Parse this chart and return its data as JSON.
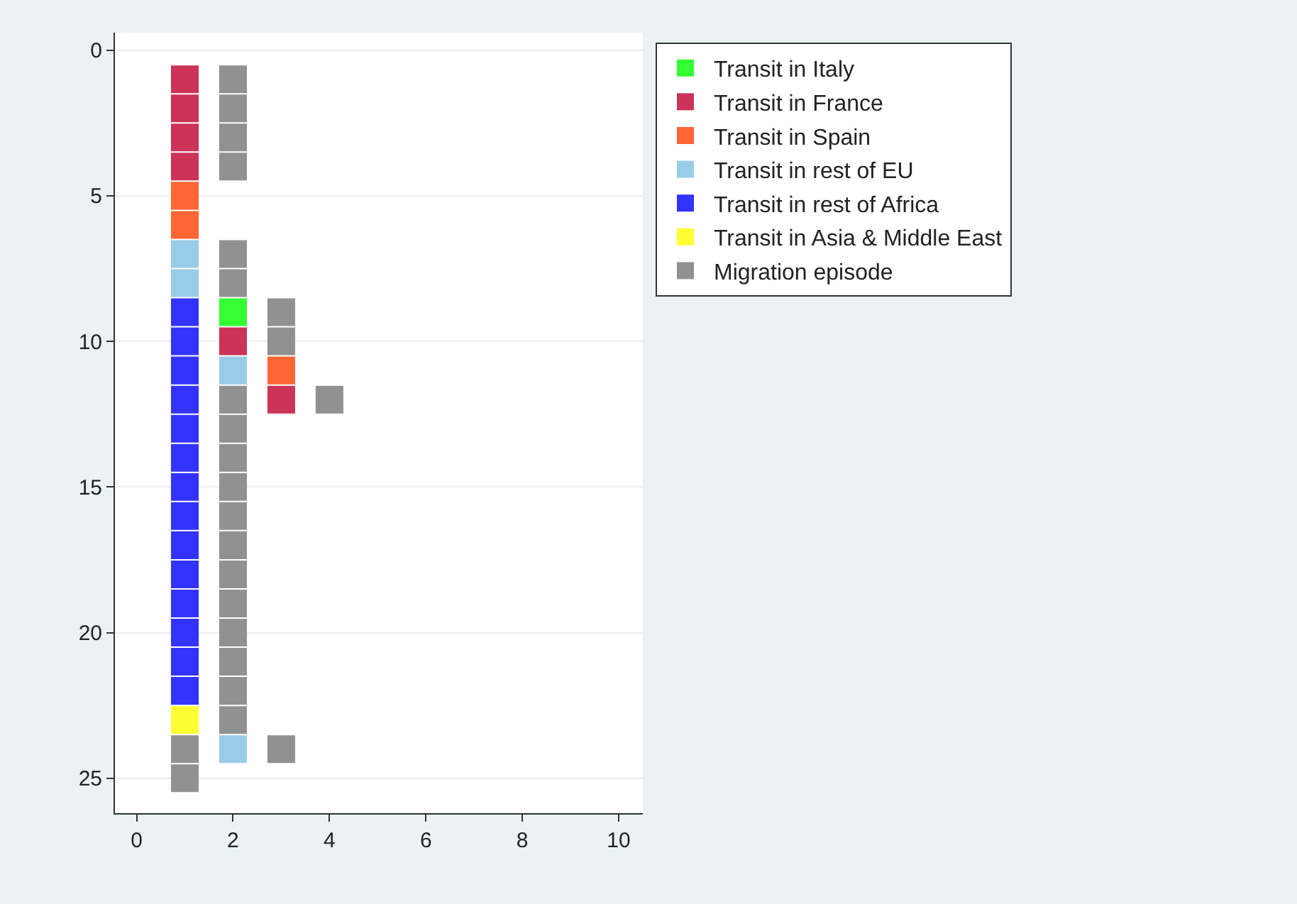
{
  "chart_data": {
    "type": "scatter",
    "marker": "square",
    "grid": "y",
    "legend": "top right",
    "xlim": [
      -0.45,
      10.5
    ],
    "xticks": [
      0,
      2,
      4,
      6,
      8,
      10
    ],
    "ylim": [
      26.2,
      -0.6
    ],
    "yticks": [
      0,
      5,
      10,
      15,
      20,
      25
    ],
    "series": [
      {
        "name": "Transit in Italy",
        "color": "#33ff33",
        "x": [
          2
        ],
        "values": [
          9
        ]
      },
      {
        "name": "Transit in France",
        "color": "#cc3358",
        "x": [
          1,
          1,
          1,
          1,
          2,
          3
        ],
        "values": [
          1,
          2,
          3,
          4,
          10,
          12
        ]
      },
      {
        "name": "Transit in Spain",
        "color": "#ff6633",
        "x": [
          1,
          1,
          3
        ],
        "values": [
          5,
          6,
          11
        ]
      },
      {
        "name": "Transit in rest of EU",
        "color": "#99cce8",
        "x": [
          1,
          1,
          2,
          2
        ],
        "values": [
          7,
          8,
          11,
          24
        ]
      },
      {
        "name": "Transit in rest of Africa",
        "color": "#3333ff",
        "x": [
          1,
          1,
          1,
          1,
          1,
          1,
          1,
          1,
          1,
          1,
          1,
          1,
          1,
          1
        ],
        "values": [
          9,
          10,
          11,
          12,
          13,
          14,
          15,
          16,
          17,
          18,
          19,
          20,
          21,
          22
        ]
      },
      {
        "name": "Transit in Asia & Middle East",
        "color": "#ffff33",
        "x": [
          1
        ],
        "values": [
          23
        ]
      },
      {
        "name": "Migration episode",
        "color": "#919191",
        "x": [
          2,
          2,
          2,
          2,
          2,
          2,
          3,
          3,
          2,
          4,
          2,
          2,
          2,
          2,
          2,
          2,
          2,
          2,
          2,
          2,
          2,
          1,
          3,
          1
        ],
        "values": [
          1,
          2,
          3,
          4,
          7,
          8,
          9,
          10,
          12,
          12,
          13,
          14,
          15,
          16,
          17,
          18,
          19,
          20,
          21,
          22,
          23,
          24,
          24,
          25
        ]
      }
    ]
  }
}
